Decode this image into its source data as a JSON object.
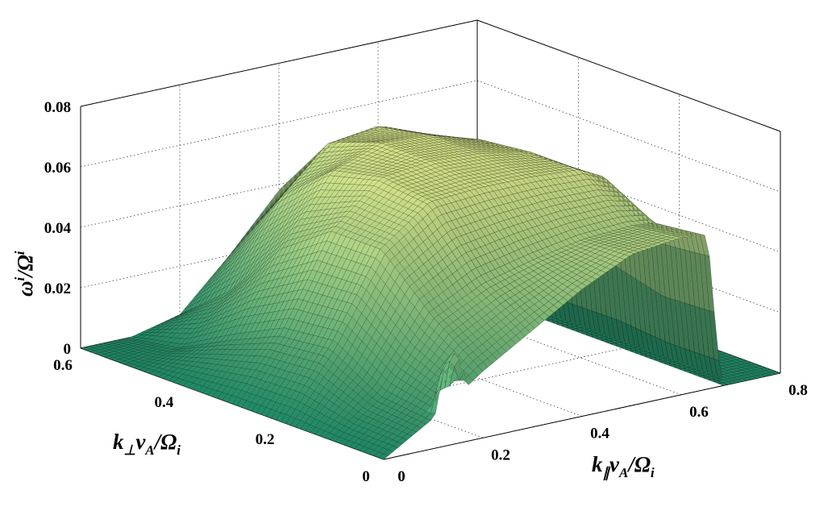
{
  "chart_data": {
    "type": "surface3d",
    "title": "",
    "xlabel": "k∥vA/Ωi",
    "ylabel": "k⊥vA/Ωi",
    "zlabel": "ωi/Ωi",
    "xlabel_parts": {
      "main": "k",
      "sub1": "∥",
      "mid": "v",
      "sub2": "A",
      "end": "/Ω",
      "sub3": "i"
    },
    "ylabel_parts": {
      "main": "k",
      "sub1": "⊥",
      "mid": "v",
      "sub2": "A",
      "end": "/Ω",
      "sub3": "i"
    },
    "zlabel_parts": {
      "main": "ω",
      "sup1": "i",
      "end": "/Ω",
      "sup2": "i"
    },
    "xlim": [
      0,
      0.8
    ],
    "ylim": [
      0,
      0.6
    ],
    "zlim": [
      0,
      0.08
    ],
    "xticks": [
      0,
      0.2,
      0.4,
      0.6,
      0.8
    ],
    "yticks": [
      0,
      0.2,
      0.4,
      0.6
    ],
    "zticks": [
      0,
      0.02,
      0.04,
      0.06,
      0.08
    ],
    "xtick_labels": [
      "0",
      "0.2",
      "0.4",
      "0.6",
      "0.8"
    ],
    "ytick_labels": [
      "0",
      "0.2",
      "0.4",
      "0.6"
    ],
    "ztick_labels": [
      "0",
      "0.02",
      "0.04",
      "0.06",
      "0.08"
    ],
    "grid": true,
    "colormap": "summer",
    "colors": {
      "low": "#1e8a66",
      "high": "#e8ee8e",
      "edge": "#000000"
    },
    "surface_samples": {
      "description_of_axes": "rows = k_perp, columns = k_par; values = growth rate",
      "k_par": [
        0.0,
        0.1,
        0.2,
        0.3,
        0.4,
        0.5,
        0.6,
        0.65,
        0.7,
        0.8
      ],
      "k_perp": [
        0.0,
        0.1,
        0.2,
        0.3,
        0.4,
        0.5,
        0.6
      ],
      "growth": [
        [
          0.0,
          0.01,
          0.022,
          0.032,
          0.042,
          0.05,
          0.052,
          0.051,
          0.0,
          0.0
        ],
        [
          0.0,
          0.012,
          0.034,
          0.042,
          0.046,
          0.049,
          0.05,
          0.049,
          0.0,
          0.0
        ],
        [
          0.0,
          0.022,
          0.05,
          0.062,
          0.063,
          0.063,
          0.062,
          0.058,
          0.0,
          0.0
        ],
        [
          0.0,
          0.02,
          0.05,
          0.064,
          0.066,
          0.065,
          0.062,
          0.056,
          0.0,
          0.0
        ],
        [
          0.0,
          0.012,
          0.038,
          0.06,
          0.066,
          0.065,
          0.06,
          0.05,
          0.0,
          0.0
        ],
        [
          0.0,
          0.003,
          0.018,
          0.045,
          0.06,
          0.062,
          0.054,
          0.04,
          0.0,
          0.0
        ],
        [
          0.0,
          0.0,
          0.004,
          0.02,
          0.038,
          0.047,
          0.04,
          0.026,
          0.0,
          0.0
        ]
      ]
    }
  }
}
